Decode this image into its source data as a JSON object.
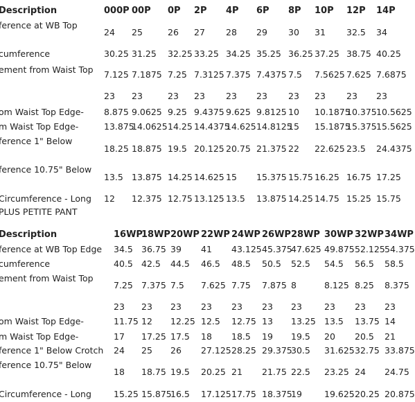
{
  "table1": {
    "headers": [
      "Description",
      "000P",
      "00P",
      "0P",
      "2P",
      "4P",
      "6P",
      "8P",
      "10P",
      "12P",
      "14P"
    ],
    "rows": [
      {
        "label": "ference at WB Top",
        "values": [
          "24",
          "25",
          "26",
          "27",
          "28",
          "29",
          "30",
          "31",
          "32.5",
          "34"
        ]
      },
      {
        "label": "cumference",
        "values": [
          "30.25",
          "31.25",
          "32.25",
          "33.25",
          "34.25",
          "35.25",
          "36.25",
          "37.25",
          "38.75",
          "40.25"
        ]
      },
      {
        "label": "ement from Waist Top",
        "values": [
          "7.125",
          "7.1875",
          "7.25",
          "7.3125",
          "7.375",
          "7.4375",
          "7.5",
          "7.5625",
          "7.625",
          "7.6875"
        ]
      },
      {
        "label": "",
        "values": [
          "23",
          "23",
          "23",
          "23",
          "23",
          "23",
          "23",
          "23",
          "23",
          "23"
        ]
      },
      {
        "label": "om Waist Top Edge-",
        "values": [
          "8.875",
          "9.0625",
          "9.25",
          "9.4375",
          "9.625",
          "9.8125",
          "10",
          "10.1875",
          "10.375",
          "10.5625"
        ]
      },
      {
        "label": "m Waist Top Edge-",
        "values": [
          "13.875",
          "14.0625",
          "14.25",
          "14.4375",
          "14.625",
          "14.8125",
          "15",
          "15.1875",
          "15.375",
          "15.5625"
        ]
      },
      {
        "label": "ference 1\" Below",
        "values": []
      },
      {
        "label": "",
        "values": [
          "18.25",
          "18.875",
          "19.5",
          "20.125",
          "20.75",
          "21.375",
          "22",
          "22.625",
          "23.5",
          "24.4375"
        ]
      },
      {
        "label": "ference 10.75\" Below",
        "values": []
      },
      {
        "label": "",
        "values": [
          "13.5",
          "13.875",
          "14.25",
          "14.625",
          "15",
          "15.375",
          "15.75",
          "16.25",
          "16.75",
          "17.25"
        ]
      },
      {
        "label": "Circumference - Long",
        "values": [
          "12",
          "12.375",
          "12.75",
          "13.125",
          "13.5",
          "13.875",
          "14.25",
          "14.75",
          "15.25",
          "15.75"
        ]
      }
    ]
  },
  "section2_title": "PLUS PETITE PANT",
  "table2": {
    "headers": [
      "Description",
      "16WP",
      "18WP",
      "20WP",
      "22WP",
      "24WP",
      "26WP",
      "28WP",
      "30WP",
      "32WP",
      "34WP"
    ],
    "rows": [
      {
        "label": "ference at WB Top Edge",
        "values": [
          "34.5",
          "36.75",
          "39",
          "41",
          "43.125",
          "45.375",
          "47.625",
          "49.875",
          "52.125",
          "54.375"
        ]
      },
      {
        "label": "cumference",
        "values": [
          "40.5",
          "42.5",
          "44.5",
          "46.5",
          "48.5",
          "50.5",
          "52.5",
          "54.5",
          "56.5",
          "58.5"
        ]
      },
      {
        "label": "ement from Waist Top",
        "values": []
      },
      {
        "label": "",
        "values": [
          "7.25",
          "7.375",
          "7.5",
          "7.625",
          "7.75",
          "7.875",
          "8",
          "8.125",
          "8.25",
          "8.375"
        ]
      },
      {
        "label": "",
        "values": [
          "23",
          "23",
          "23",
          "23",
          "23",
          "23",
          "23",
          "23",
          "23",
          "23"
        ]
      },
      {
        "label": "om Waist Top Edge-",
        "values": [
          "11.75",
          "12",
          "12.25",
          "12.5",
          "12.75",
          "13",
          "13.25",
          "13.5",
          "13.75",
          "14"
        ]
      },
      {
        "label": "m Waist Top Edge-",
        "values": [
          "17",
          "17.25",
          "17.5",
          "18",
          "18.5",
          "19",
          "19.5",
          "20",
          "20.5",
          "21"
        ]
      },
      {
        "label": "ference 1\" Below Crotch",
        "values": [
          "24",
          "25",
          "26",
          "27.125",
          "28.25",
          "29.375",
          "30.5",
          "31.625",
          "32.75",
          "33.875"
        ]
      },
      {
        "label": "ference 10.75\" Below",
        "values": []
      },
      {
        "label": "",
        "values": [
          "18",
          "18.75",
          "19.5",
          "20.25",
          "21",
          "21.75",
          "22.5",
          "23.25",
          "24",
          "24.75"
        ]
      },
      {
        "label": "Circumference - Long",
        "values": [
          "15.25",
          "15.875",
          "16.5",
          "17.125",
          "17.75",
          "18.375",
          "19",
          "19.625",
          "20.25",
          "20.875"
        ]
      }
    ]
  }
}
